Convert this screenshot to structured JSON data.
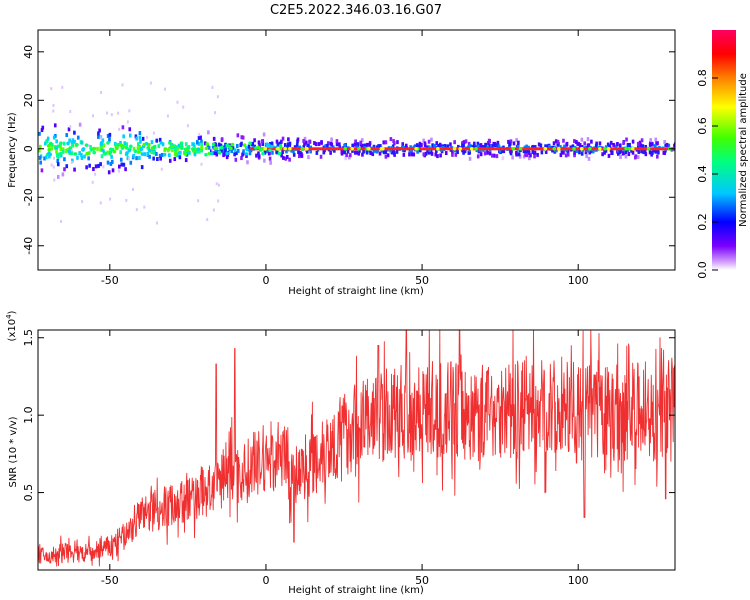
{
  "chart_data": [
    {
      "type": "heatmap",
      "title": "C2E5.2022.346.03.16.G07",
      "xlabel": "Height of straight line (km)",
      "ylabel": "Frequency (Hz)",
      "xlim": [
        -73,
        131
      ],
      "ylim": [
        -50,
        49
      ],
      "xticks": [
        -50,
        0,
        50,
        100
      ],
      "yticks": [
        40,
        20,
        0,
        -20,
        -40
      ],
      "band": {
        "center_hz": 0,
        "description": "dominant energy concentrated near 0 Hz; broad noisy spread below -40 km, narrow red line above 0 km"
      },
      "colorbar": {
        "label": "Normalized spectral amplitude",
        "range": [
          0.0,
          1.0
        ],
        "ticks": [
          "0.0",
          "0.2",
          "0.4",
          "0.6",
          "0.8"
        ],
        "colors": [
          "#ffffff",
          "#d8a8ff",
          "#7a00ff",
          "#0000ff",
          "#00c8ff",
          "#00ff80",
          "#40ff00",
          "#ffff00",
          "#ff8000",
          "#ff0000",
          "#ff0060"
        ]
      }
    },
    {
      "type": "line",
      "xlabel": "Height of straight line (km)",
      "ylabel": "SNR (10 * v/v)",
      "yscale_label": "(x10^4)",
      "xlim": [
        -73,
        131
      ],
      "ylim": [
        0.0,
        1.55
      ],
      "xticks": [
        -50,
        0,
        50,
        100
      ],
      "yticks": [
        "0.5",
        "1.0",
        "1.5"
      ],
      "series": [
        {
          "color": "#f03030",
          "x": [
            -73,
            -70,
            -65,
            -60,
            -55,
            -50,
            -45,
            -40,
            -35,
            -30,
            -25,
            -20,
            -15,
            -12,
            -10,
            -5,
            0,
            5,
            8,
            10,
            15,
            20,
            25,
            30,
            35,
            40,
            45,
            50,
            55,
            60,
            65,
            70,
            75,
            80,
            85,
            90,
            95,
            100,
            105,
            110,
            115,
            120,
            125,
            130
          ],
          "y": [
            0.1,
            0.08,
            0.12,
            0.1,
            0.12,
            0.15,
            0.22,
            0.35,
            0.4,
            0.42,
            0.45,
            0.5,
            0.55,
            0.7,
            0.6,
            0.65,
            0.72,
            0.75,
            0.6,
            0.62,
            0.72,
            0.8,
            0.88,
            0.95,
            0.98,
            1.0,
            1.02,
            1.05,
            1.02,
            1.05,
            1.0,
            1.03,
            1.05,
            1.02,
            1.05,
            1.03,
            1.04,
            1.0,
            1.05,
            1.0,
            1.02,
            1.03,
            0.98,
            1.05
          ],
          "peaks": [
            {
              "x": -16,
              "y": 1.33
            },
            {
              "x": -10,
              "y": 1.43
            },
            {
              "x": 9,
              "y": 0.18
            },
            {
              "x": 36,
              "y": 1.45
            },
            {
              "x": 45,
              "y": 1.55
            },
            {
              "x": 62,
              "y": 1.55
            },
            {
              "x": 102,
              "y": 0.34
            },
            {
              "x": 128,
              "y": 0.46
            }
          ]
        }
      ]
    }
  ]
}
